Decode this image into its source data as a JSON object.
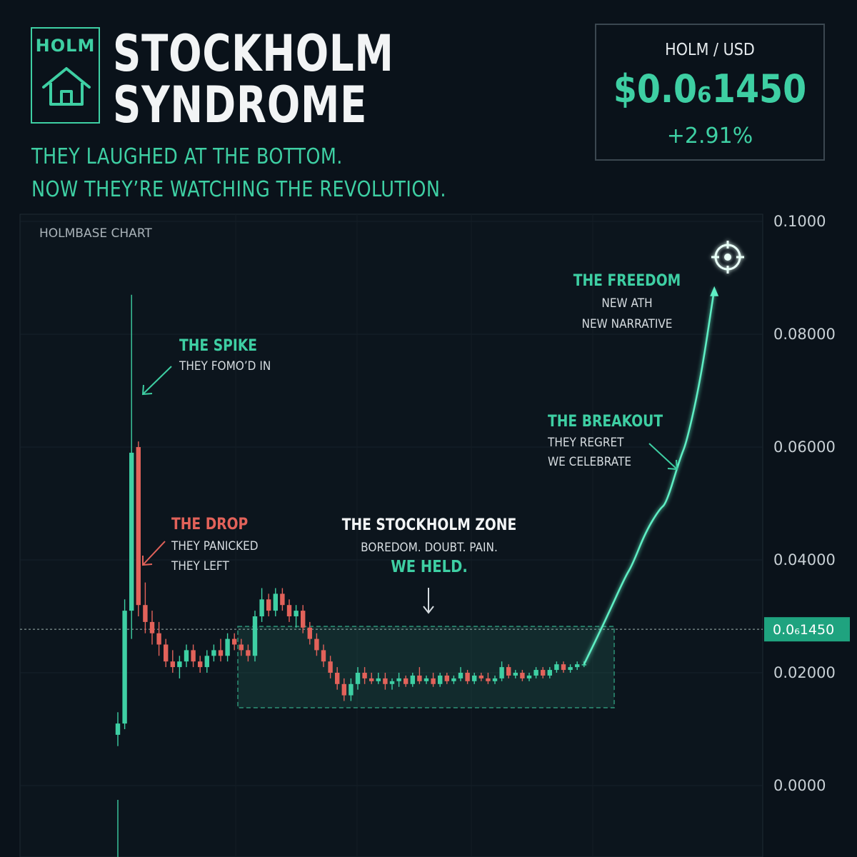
{
  "brand": {
    "ticker": "HOLM",
    "title_line1": "STOCKHOLM",
    "title_line2": "SYNDROME",
    "tagline_line1": "THEY LAUGHED AT THE BOTTOM.",
    "tagline_line2": "NOW THEY’RE WATCHING THE REVOLUTION."
  },
  "price_box": {
    "pair": "HOLM / USD",
    "price": "$0.0₆1450",
    "change": "+2.91%"
  },
  "chart_data": {
    "type": "candlestick",
    "title": "HOLMBASE CHART",
    "y_ticks": [
      "0.1000",
      "0.08000",
      "0.06000",
      "0.04000",
      "0.02000",
      "0.0000"
    ],
    "y_tick_values": [
      0.1,
      0.08,
      0.06,
      0.04,
      0.02,
      0.0
    ],
    "ylim": [
      -0.013,
      0.102
    ],
    "current_price_label": "0.0₆1450",
    "current_price_value": 0.0277,
    "candles": [
      {
        "o": 0.009,
        "h": 0.013,
        "l": 0.007,
        "c": 0.011
      },
      {
        "o": 0.011,
        "h": 0.033,
        "l": 0.01,
        "c": 0.031
      },
      {
        "o": 0.031,
        "h": 0.087,
        "l": 0.026,
        "c": 0.059
      },
      {
        "o": 0.06,
        "h": 0.061,
        "l": 0.03,
        "c": 0.032
      },
      {
        "o": 0.032,
        "h": 0.036,
        "l": 0.027,
        "c": 0.029
      },
      {
        "o": 0.029,
        "h": 0.031,
        "l": 0.025,
        "c": 0.027
      },
      {
        "o": 0.027,
        "h": 0.029,
        "l": 0.023,
        "c": 0.025
      },
      {
        "o": 0.025,
        "h": 0.026,
        "l": 0.021,
        "c": 0.022
      },
      {
        "o": 0.022,
        "h": 0.024,
        "l": 0.02,
        "c": 0.021
      },
      {
        "o": 0.021,
        "h": 0.023,
        "l": 0.019,
        "c": 0.022
      },
      {
        "o": 0.022,
        "h": 0.025,
        "l": 0.021,
        "c": 0.024
      },
      {
        "o": 0.024,
        "h": 0.025,
        "l": 0.021,
        "c": 0.022
      },
      {
        "o": 0.022,
        "h": 0.023,
        "l": 0.02,
        "c": 0.021
      },
      {
        "o": 0.021,
        "h": 0.024,
        "l": 0.02,
        "c": 0.023
      },
      {
        "o": 0.023,
        "h": 0.025,
        "l": 0.022,
        "c": 0.024
      },
      {
        "o": 0.024,
        "h": 0.026,
        "l": 0.022,
        "c": 0.023
      },
      {
        "o": 0.023,
        "h": 0.027,
        "l": 0.022,
        "c": 0.026
      },
      {
        "o": 0.026,
        "h": 0.027,
        "l": 0.024,
        "c": 0.025
      },
      {
        "o": 0.025,
        "h": 0.026,
        "l": 0.023,
        "c": 0.024
      },
      {
        "o": 0.024,
        "h": 0.025,
        "l": 0.022,
        "c": 0.023
      },
      {
        "o": 0.023,
        "h": 0.031,
        "l": 0.022,
        "c": 0.03
      },
      {
        "o": 0.03,
        "h": 0.035,
        "l": 0.029,
        "c": 0.033
      },
      {
        "o": 0.033,
        "h": 0.034,
        "l": 0.03,
        "c": 0.031
      },
      {
        "o": 0.031,
        "h": 0.035,
        "l": 0.03,
        "c": 0.034
      },
      {
        "o": 0.034,
        "h": 0.035,
        "l": 0.031,
        "c": 0.032
      },
      {
        "o": 0.032,
        "h": 0.033,
        "l": 0.029,
        "c": 0.03
      },
      {
        "o": 0.03,
        "h": 0.032,
        "l": 0.028,
        "c": 0.031
      },
      {
        "o": 0.031,
        "h": 0.032,
        "l": 0.027,
        "c": 0.028
      },
      {
        "o": 0.028,
        "h": 0.029,
        "l": 0.025,
        "c": 0.026
      },
      {
        "o": 0.026,
        "h": 0.027,
        "l": 0.023,
        "c": 0.024
      },
      {
        "o": 0.024,
        "h": 0.025,
        "l": 0.021,
        "c": 0.022
      },
      {
        "o": 0.022,
        "h": 0.023,
        "l": 0.019,
        "c": 0.02
      },
      {
        "o": 0.02,
        "h": 0.021,
        "l": 0.017,
        "c": 0.018
      },
      {
        "o": 0.018,
        "h": 0.019,
        "l": 0.015,
        "c": 0.016
      },
      {
        "o": 0.016,
        "h": 0.019,
        "l": 0.015,
        "c": 0.018
      },
      {
        "o": 0.018,
        "h": 0.021,
        "l": 0.017,
        "c": 0.02
      },
      {
        "o": 0.02,
        "h": 0.021,
        "l": 0.018,
        "c": 0.019
      },
      {
        "o": 0.019,
        "h": 0.02,
        "l": 0.018,
        "c": 0.0185
      },
      {
        "o": 0.0185,
        "h": 0.02,
        "l": 0.018,
        "c": 0.019
      },
      {
        "o": 0.019,
        "h": 0.02,
        "l": 0.017,
        "c": 0.018
      },
      {
        "o": 0.018,
        "h": 0.019,
        "l": 0.017,
        "c": 0.0185
      },
      {
        "o": 0.0185,
        "h": 0.02,
        "l": 0.0175,
        "c": 0.019
      },
      {
        "o": 0.019,
        "h": 0.0195,
        "l": 0.0175,
        "c": 0.018
      },
      {
        "o": 0.018,
        "h": 0.02,
        "l": 0.0175,
        "c": 0.0195
      },
      {
        "o": 0.0195,
        "h": 0.021,
        "l": 0.018,
        "c": 0.0185
      },
      {
        "o": 0.0185,
        "h": 0.0195,
        "l": 0.018,
        "c": 0.019
      },
      {
        "o": 0.019,
        "h": 0.02,
        "l": 0.0175,
        "c": 0.018
      },
      {
        "o": 0.018,
        "h": 0.02,
        "l": 0.0175,
        "c": 0.0195
      },
      {
        "o": 0.0195,
        "h": 0.02,
        "l": 0.018,
        "c": 0.0185
      },
      {
        "o": 0.0185,
        "h": 0.0195,
        "l": 0.018,
        "c": 0.019
      },
      {
        "o": 0.019,
        "h": 0.021,
        "l": 0.0185,
        "c": 0.02
      },
      {
        "o": 0.02,
        "h": 0.0205,
        "l": 0.018,
        "c": 0.0185
      },
      {
        "o": 0.0185,
        "h": 0.02,
        "l": 0.018,
        "c": 0.0195
      },
      {
        "o": 0.0195,
        "h": 0.02,
        "l": 0.0185,
        "c": 0.019
      },
      {
        "o": 0.019,
        "h": 0.02,
        "l": 0.018,
        "c": 0.0185
      },
      {
        "o": 0.0185,
        "h": 0.0195,
        "l": 0.018,
        "c": 0.019
      },
      {
        "o": 0.019,
        "h": 0.022,
        "l": 0.0185,
        "c": 0.021
      },
      {
        "o": 0.021,
        "h": 0.0215,
        "l": 0.019,
        "c": 0.0195
      },
      {
        "o": 0.0195,
        "h": 0.0205,
        "l": 0.019,
        "c": 0.02
      },
      {
        "o": 0.02,
        "h": 0.0205,
        "l": 0.0185,
        "c": 0.019
      },
      {
        "o": 0.019,
        "h": 0.02,
        "l": 0.0185,
        "c": 0.0195
      },
      {
        "o": 0.0195,
        "h": 0.021,
        "l": 0.019,
        "c": 0.0205
      },
      {
        "o": 0.0205,
        "h": 0.021,
        "l": 0.019,
        "c": 0.0195
      },
      {
        "o": 0.0195,
        "h": 0.021,
        "l": 0.019,
        "c": 0.0205
      },
      {
        "o": 0.0205,
        "h": 0.022,
        "l": 0.02,
        "c": 0.0215
      },
      {
        "o": 0.0215,
        "h": 0.022,
        "l": 0.02,
        "c": 0.0205
      },
      {
        "o": 0.0205,
        "h": 0.0215,
        "l": 0.02,
        "c": 0.021
      },
      {
        "o": 0.021,
        "h": 0.022,
        "l": 0.0205,
        "c": 0.0215
      },
      {
        "o": 0.0215,
        "h": 0.022,
        "l": 0.021,
        "c": 0.0215
      }
    ],
    "breakout_line": [
      {
        "i": 68,
        "v": 0.0215
      },
      {
        "i": 71,
        "v": 0.029
      },
      {
        "i": 74,
        "v": 0.037
      },
      {
        "i": 75,
        "v": 0.039
      },
      {
        "i": 77,
        "v": 0.045
      },
      {
        "i": 79,
        "v": 0.049
      },
      {
        "i": 80,
        "v": 0.05
      },
      {
        "i": 82,
        "v": 0.058
      },
      {
        "i": 83,
        "v": 0.061
      },
      {
        "i": 85,
        "v": 0.072
      },
      {
        "i": 87,
        "v": 0.088
      }
    ],
    "annotations": {
      "spike": {
        "title": "THE SPIKE",
        "sub": "THEY FOMO’D IN"
      },
      "drop": {
        "title": "THE DROP",
        "sub1": "THEY PANICKED",
        "sub2": "THEY LEFT"
      },
      "zone": {
        "title": "THE STOCKHOLM ZONE",
        "sub": "BOREDOM. DOUBT. PAIN.",
        "emph": "WE HELD."
      },
      "breakout": {
        "title": "THE BREAKOUT",
        "sub1": "THEY REGRET",
        "sub2": "WE CELEBRATE"
      },
      "freedom": {
        "title": "THE FREEDOM",
        "sub1": "NEW ATH",
        "sub2": "NEW NARRATIVE"
      }
    }
  },
  "colors": {
    "accent": "#3ecfa3",
    "down": "#e2625a",
    "bg": "#0a121a"
  }
}
